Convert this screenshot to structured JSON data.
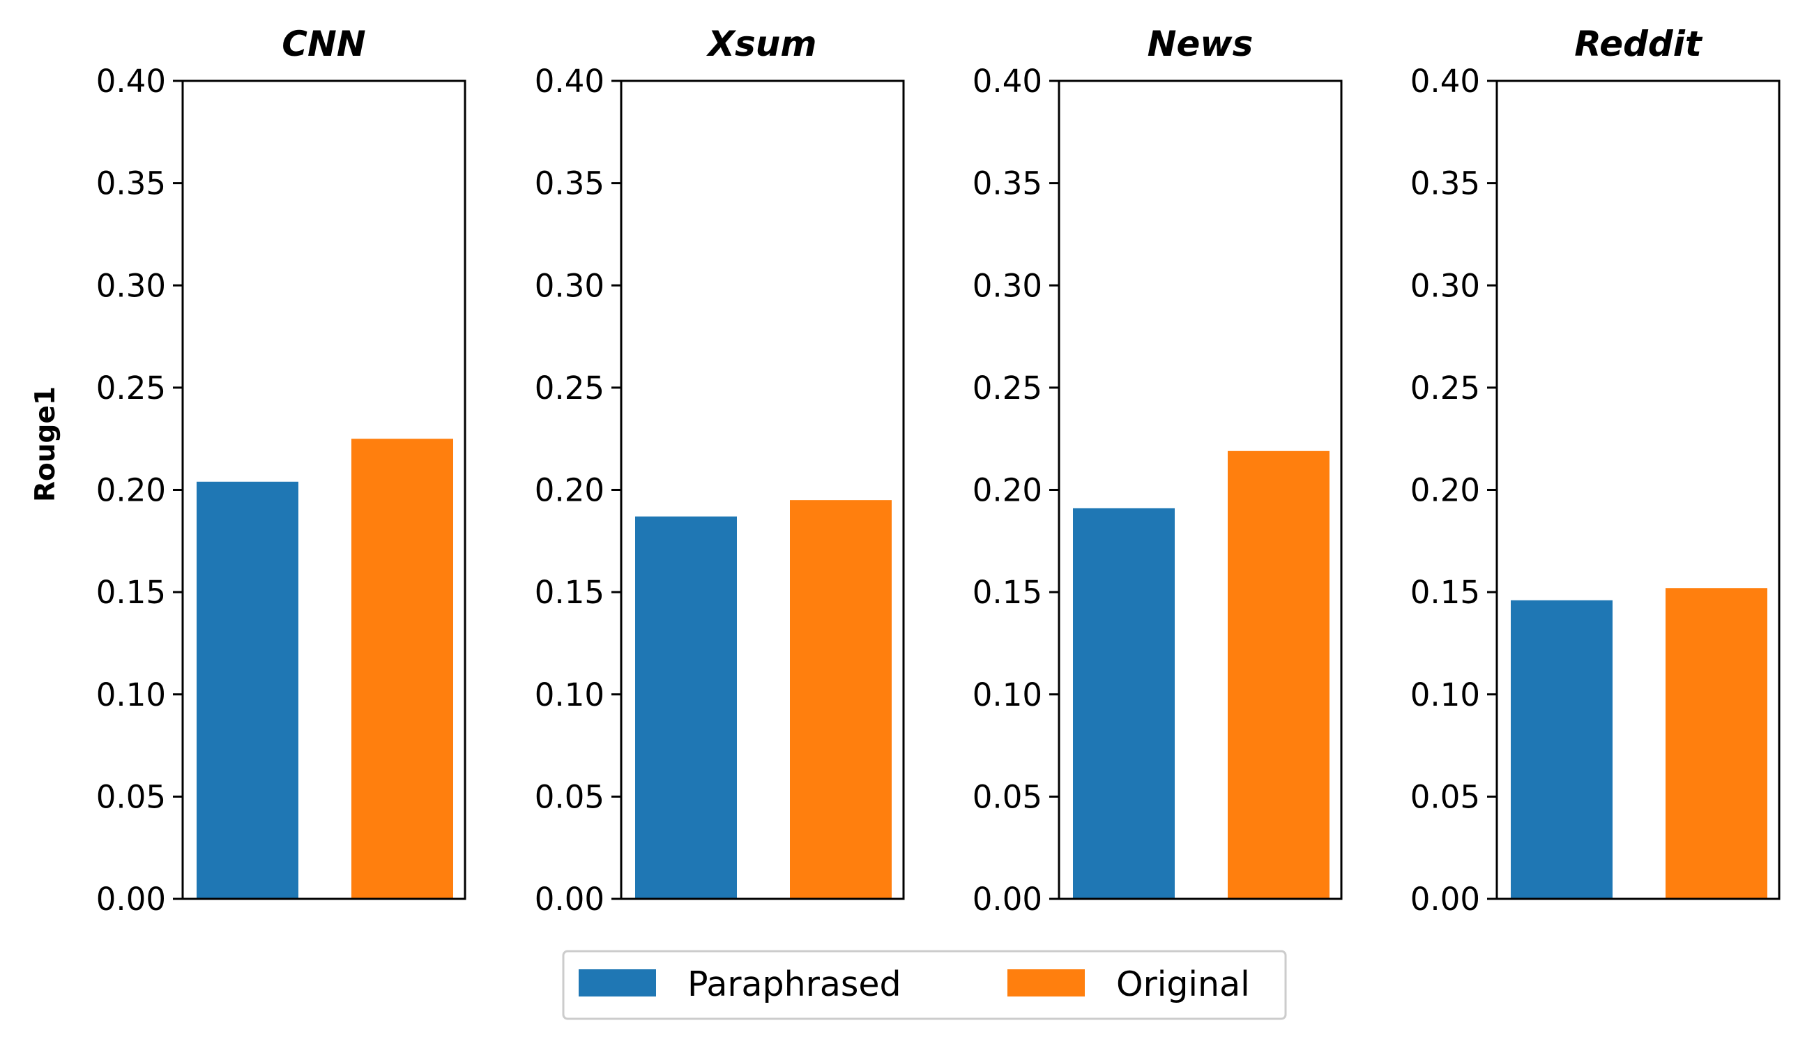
{
  "chart_data": {
    "type": "bar",
    "ylabel": "Rouge1",
    "ylim": [
      0,
      0.4
    ],
    "yticks": [
      "0.00",
      "0.05",
      "0.10",
      "0.15",
      "0.20",
      "0.25",
      "0.30",
      "0.35",
      "0.40"
    ],
    "series_colors": {
      "Paraphrased": "#1f77b4",
      "Original": "#ff7f0e"
    },
    "legend": {
      "placement": "bottom-center",
      "items": [
        {
          "label": "Paraphrased",
          "color": "#1f77b4"
        },
        {
          "label": "Original",
          "color": "#ff7f0e"
        }
      ]
    },
    "panels": [
      {
        "title": "CNN",
        "series": [
          {
            "name": "Paraphrased",
            "value": 0.204
          },
          {
            "name": "Original",
            "value": 0.225
          }
        ]
      },
      {
        "title": "Xsum",
        "series": [
          {
            "name": "Paraphrased",
            "value": 0.187
          },
          {
            "name": "Original",
            "value": 0.195
          }
        ]
      },
      {
        "title": "News",
        "series": [
          {
            "name": "Paraphrased",
            "value": 0.191
          },
          {
            "name": "Original",
            "value": 0.219
          }
        ]
      },
      {
        "title": "Reddit",
        "series": [
          {
            "name": "Paraphrased",
            "value": 0.146
          },
          {
            "name": "Original",
            "value": 0.152
          }
        ]
      }
    ]
  }
}
